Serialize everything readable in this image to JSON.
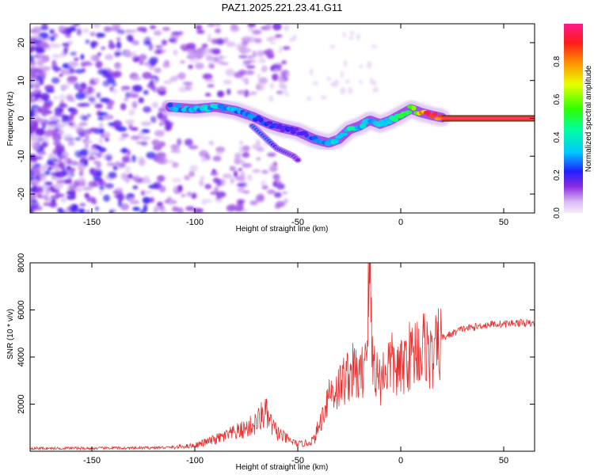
{
  "title": "PAZ1.2025.221.23.41.G11",
  "chart_data": [
    {
      "type": "heatmap",
      "xlabel": "Height of straight line (km)",
      "ylabel": "Frequency (Hz)",
      "xlim": [
        -180,
        65
      ],
      "ylim": [
        -25,
        25
      ],
      "xticks": [
        -150,
        -100,
        -50,
        0,
        50
      ],
      "yticks": [
        -20,
        -10,
        0,
        10,
        20
      ],
      "colorbar": {
        "label": "Normalized spectral amplitude",
        "range": [
          0,
          1
        ],
        "ticks": [
          "0.0",
          "0.2",
          "0.4",
          "0.6",
          "0.8"
        ],
        "colormap": "rainbow (lavender-violet-blue-cyan-green-yellow-red-magenta)"
      },
      "ridge": {
        "x": [
          -112,
          -100,
          -90,
          -80,
          -72,
          -64,
          -58,
          -50,
          -42,
          -35,
          -30,
          -25,
          -20,
          -15,
          -10,
          -5,
          0,
          5,
          10,
          15,
          20,
          65
        ],
        "y": [
          3.0,
          2.5,
          3.0,
          2.0,
          0.5,
          -1.5,
          -2.5,
          -3.5,
          -5.5,
          -6.5,
          -5.5,
          -3.0,
          -2.0,
          -0.5,
          -1.5,
          -0.5,
          1.0,
          2.5,
          1.5,
          0.8,
          0.2,
          0.0
        ],
        "amplitude": [
          0.3,
          0.3,
          0.35,
          0.3,
          0.25,
          0.2,
          0.2,
          0.2,
          0.25,
          0.3,
          0.35,
          0.4,
          0.35,
          0.3,
          0.35,
          0.4,
          0.45,
          0.5,
          0.75,
          0.9,
          0.95,
          0.95
        ]
      },
      "secondary_branch": {
        "x": [
          -72,
          -68,
          -64,
          -60,
          -56,
          -52,
          -50
        ],
        "y": [
          -2,
          -4,
          -6,
          -8,
          -9,
          -10,
          -11
        ],
        "amplitude": [
          0.25,
          0.25,
          0.25,
          0.2,
          0.2,
          0.15,
          0.15
        ]
      },
      "noise": {
        "region": "scattered low-amplitude speckle for heights below about -110 km across all frequencies, thinning out toward -60 km"
      }
    },
    {
      "type": "line",
      "xlabel": "Height of straight line (km)",
      "ylabel": "SNR (10 * v/v)",
      "xlim": [
        -180,
        65
      ],
      "ylim": [
        0,
        8000
      ],
      "xticks": [
        -150,
        -100,
        -50,
        0,
        50
      ],
      "yticks": [
        2000,
        4000,
        6000,
        8000
      ],
      "color": "#e83030",
      "series": [
        {
          "x": [
            -180,
            -170,
            -160,
            -150,
            -140,
            -130,
            -120,
            -110,
            -100,
            -95,
            -90,
            -85,
            -80,
            -75,
            -70,
            -66,
            -64,
            -62,
            -60,
            -55,
            -50,
            -45,
            -42,
            -40,
            -38,
            -35,
            -32,
            -30,
            -28,
            -25,
            -22,
            -20,
            -18,
            -16,
            -15,
            -14,
            -12,
            -10,
            -8,
            -5,
            -3,
            0,
            3,
            5,
            8,
            10,
            12,
            15,
            18,
            20,
            25,
            30,
            35,
            40,
            45,
            50,
            55,
            60,
            65
          ],
          "y": [
            130,
            120,
            130,
            120,
            140,
            130,
            150,
            170,
            250,
            380,
            500,
            650,
            800,
            950,
            1200,
            1700,
            1300,
            1000,
            800,
            500,
            300,
            350,
            500,
            1000,
            1500,
            2500,
            2600,
            2700,
            3000,
            3300,
            3400,
            3000,
            3600,
            5600,
            8000,
            4200,
            3400,
            3000,
            3400,
            3800,
            3500,
            3400,
            4100,
            4000,
            4400,
            4200,
            4600,
            3800,
            4400,
            4800,
            5000,
            5200,
            5250,
            5350,
            5400,
            5400,
            5450,
            5450,
            5400
          ]
        }
      ]
    }
  ]
}
